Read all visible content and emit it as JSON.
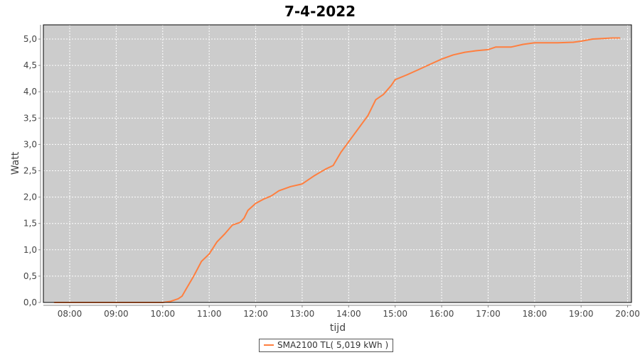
{
  "chart_data": {
    "type": "line",
    "title": "7-4-2022",
    "xlabel": "tijd",
    "ylabel": "Watt",
    "xlim": [
      "07:26",
      "20:05"
    ],
    "ylim": [
      0,
      5.27
    ],
    "x_ticks": [
      "08:00",
      "09:00",
      "10:00",
      "11:00",
      "12:00",
      "13:00",
      "14:00",
      "15:00",
      "16:00",
      "17:00",
      "18:00",
      "19:00",
      "20:00"
    ],
    "y_ticks": [
      "0,0",
      "0,5",
      "1,0",
      "1,5",
      "2,0",
      "2,5",
      "3,0",
      "3,5",
      "4,0",
      "4,5",
      "5,0"
    ],
    "grid": true,
    "legend_position": "bottom",
    "colors": {
      "series": "#ff7f3f",
      "plot_background": "#cccccc",
      "grid": "#ffffff"
    },
    "series": [
      {
        "name": "SMA2100 TL( 5,019 kWh )",
        "x": [
          "07:40",
          "10:00",
          "10:10",
          "10:20",
          "10:25",
          "10:30",
          "10:40",
          "10:50",
          "11:00",
          "11:10",
          "11:20",
          "11:30",
          "11:40",
          "11:45",
          "11:50",
          "12:00",
          "12:10",
          "12:20",
          "12:30",
          "12:45",
          "13:00",
          "13:15",
          "13:30",
          "13:40",
          "13:50",
          "14:00",
          "14:15",
          "14:25",
          "14:35",
          "14:45",
          "14:55",
          "15:00",
          "15:15",
          "15:30",
          "15:45",
          "16:00",
          "16:15",
          "16:30",
          "16:45",
          "17:00",
          "17:10",
          "17:30",
          "17:45",
          "18:00",
          "18:30",
          "18:50",
          "19:00",
          "19:15",
          "19:40",
          "19:50"
        ],
        "y": [
          0,
          0,
          0.02,
          0.07,
          0.12,
          0.25,
          0.5,
          0.78,
          0.92,
          1.15,
          1.3,
          1.47,
          1.52,
          1.6,
          1.75,
          1.88,
          1.96,
          2.02,
          2.12,
          2.2,
          2.25,
          2.4,
          2.53,
          2.6,
          2.85,
          3.05,
          3.35,
          3.55,
          3.85,
          3.95,
          4.12,
          4.23,
          4.32,
          4.42,
          4.52,
          4.62,
          4.7,
          4.75,
          4.78,
          4.8,
          4.85,
          4.85,
          4.9,
          4.93,
          4.93,
          4.94,
          4.96,
          5.0,
          5.02,
          5.02
        ]
      }
    ]
  }
}
